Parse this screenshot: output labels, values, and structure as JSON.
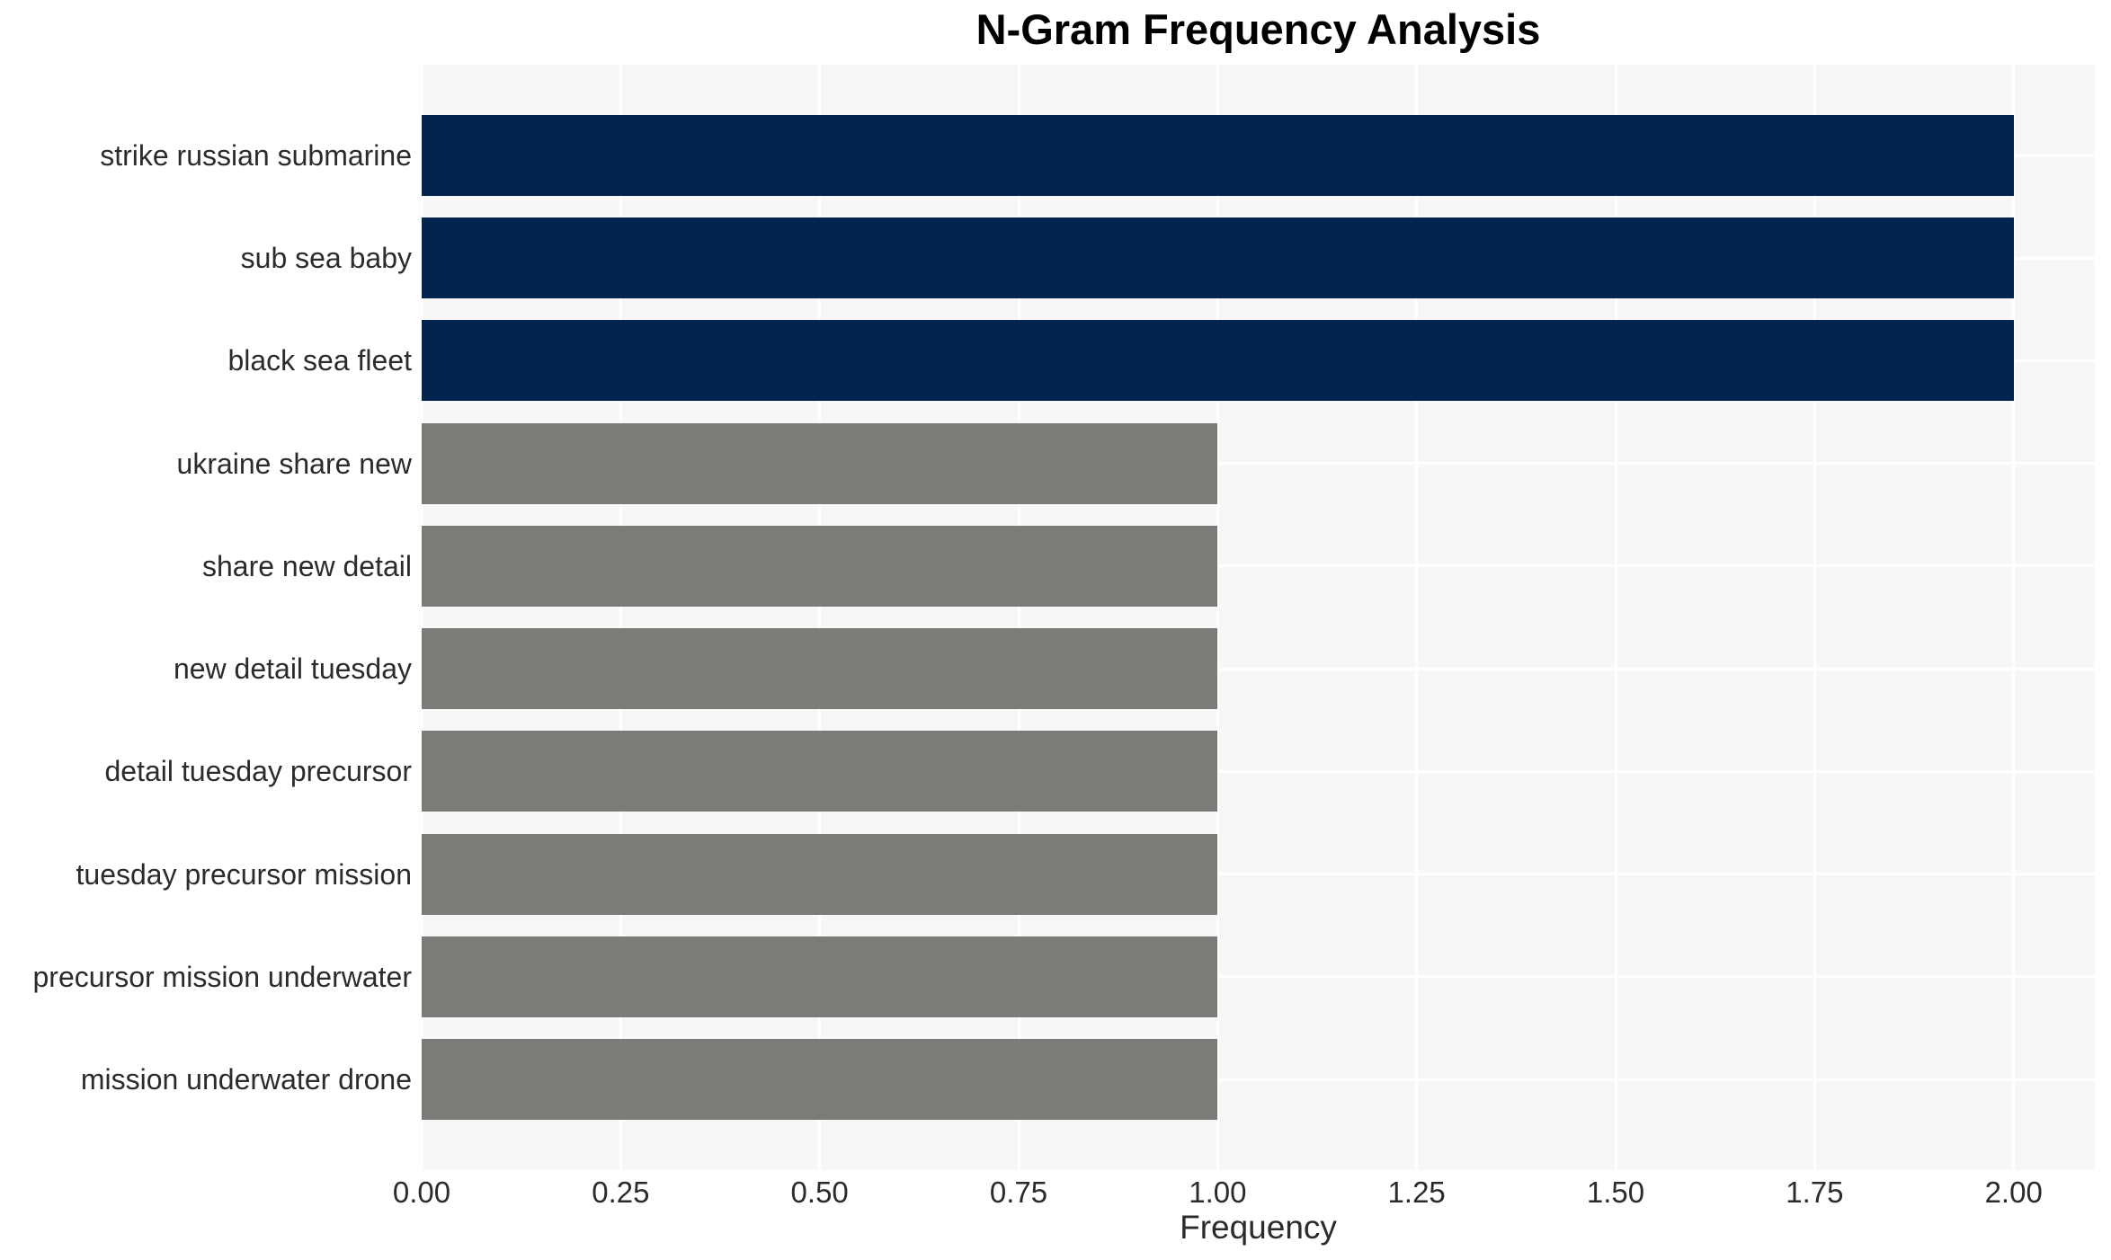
{
  "chart_data": {
    "type": "bar",
    "orientation": "horizontal",
    "title": "N-Gram Frequency Analysis",
    "xlabel": "Frequency",
    "ylabel": "",
    "categories": [
      "strike russian submarine",
      "sub sea baby",
      "black sea fleet",
      "ukraine share new",
      "share new detail",
      "new detail tuesday",
      "detail tuesday precursor",
      "tuesday precursor mission",
      "precursor mission underwater",
      "mission underwater drone"
    ],
    "values": [
      2,
      2,
      2,
      1,
      1,
      1,
      1,
      1,
      1,
      1
    ],
    "bar_colors": [
      "#02244e",
      "#02244e",
      "#02244e",
      "#7b7b78",
      "#7b7b78",
      "#7b7b78",
      "#7b7b78",
      "#7b7b78",
      "#7b7b78",
      "#7b7b78"
    ],
    "xlim": [
      0,
      2.102
    ],
    "xticks": [
      0,
      0.25,
      0.5,
      0.75,
      1.0,
      1.25,
      1.5,
      1.75,
      2.0
    ],
    "xtick_labels": [
      "0.00",
      "0.25",
      "0.50",
      "0.75",
      "1.00",
      "1.25",
      "1.50",
      "1.75",
      "2.00"
    ],
    "grid": true,
    "legend_position": "none",
    "colors": {
      "highlight_bar": "#02244e",
      "default_bar": "#7b7b78",
      "plot_background": "#f7f7f7",
      "grid_color": "#ffffff",
      "text_color": "#2b2b2b",
      "title_color": "#000000"
    }
  }
}
